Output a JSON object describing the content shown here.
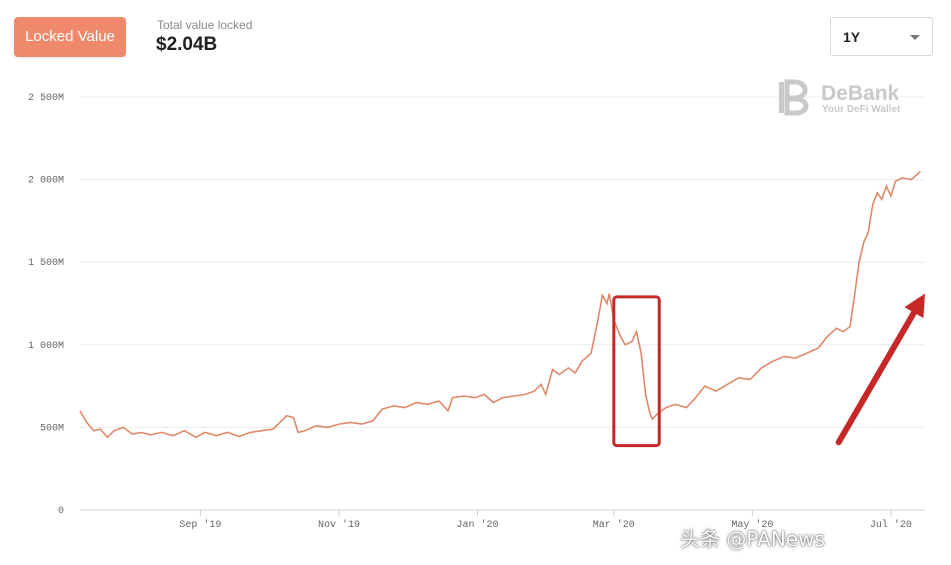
{
  "header": {
    "tab_label": "Locked Value",
    "tvl_label": "Total value locked",
    "tvl_value": "$2.04B",
    "range_selected": "1Y"
  },
  "logo": {
    "name": "DeBank",
    "tagline": "Your DeFi Wallet"
  },
  "watermark": "头条 @PANews",
  "colors": {
    "accent": "#ee8a6b",
    "line": "#e0896a",
    "annotation": "#c62828"
  },
  "chart_data": {
    "type": "line",
    "title": "",
    "xlabel": "",
    "ylabel": "",
    "ylim": [
      0,
      2500
    ],
    "yticks": [
      0,
      500,
      1000,
      1500,
      2000,
      2500
    ],
    "ytick_labels": [
      "0",
      "500M",
      "1 000M",
      "1 500M",
      "2 000M",
      "2 500M"
    ],
    "xlim": [
      "2019-07-10",
      "2020-07-16"
    ],
    "xticks": [
      "2019-09-01",
      "2019-11-01",
      "2020-01-01",
      "2020-03-01",
      "2020-05-01",
      "2020-07-01"
    ],
    "xtick_labels": [
      "Sep '19",
      "Nov '19",
      "Jan '20",
      "Mar '20",
      "May '20",
      "Jul '20"
    ],
    "grid": true,
    "series": [
      {
        "values": [
          [
            "2019-07-10",
            600
          ],
          [
            "2019-07-13",
            530
          ],
          [
            "2019-07-16",
            480
          ],
          [
            "2019-07-19",
            490
          ],
          [
            "2019-07-22",
            440
          ],
          [
            "2019-07-25",
            480
          ],
          [
            "2019-07-29",
            500
          ],
          [
            "2019-08-02",
            460
          ],
          [
            "2019-08-06",
            470
          ],
          [
            "2019-08-10",
            455
          ],
          [
            "2019-08-15",
            470
          ],
          [
            "2019-08-20",
            450
          ],
          [
            "2019-08-25",
            480
          ],
          [
            "2019-08-30",
            440
          ],
          [
            "2019-09-03",
            470
          ],
          [
            "2019-09-08",
            450
          ],
          [
            "2019-09-13",
            470
          ],
          [
            "2019-09-18",
            445
          ],
          [
            "2019-09-23",
            470
          ],
          [
            "2019-09-28",
            480
          ],
          [
            "2019-10-03",
            490
          ],
          [
            "2019-10-06",
            530
          ],
          [
            "2019-10-09",
            570
          ],
          [
            "2019-10-12",
            560
          ],
          [
            "2019-10-14",
            470
          ],
          [
            "2019-10-17",
            480
          ],
          [
            "2019-10-22",
            510
          ],
          [
            "2019-10-27",
            500
          ],
          [
            "2019-11-01",
            520
          ],
          [
            "2019-11-06",
            530
          ],
          [
            "2019-11-11",
            520
          ],
          [
            "2019-11-16",
            540
          ],
          [
            "2019-11-20",
            610
          ],
          [
            "2019-11-25",
            630
          ],
          [
            "2019-11-30",
            620
          ],
          [
            "2019-12-05",
            650
          ],
          [
            "2019-12-10",
            640
          ],
          [
            "2019-12-15",
            660
          ],
          [
            "2019-12-19",
            600
          ],
          [
            "2019-12-21",
            680
          ],
          [
            "2019-12-26",
            690
          ],
          [
            "2019-12-31",
            680
          ],
          [
            "2020-01-04",
            700
          ],
          [
            "2020-01-08",
            650
          ],
          [
            "2020-01-12",
            680
          ],
          [
            "2020-01-17",
            690
          ],
          [
            "2020-01-22",
            700
          ],
          [
            "2020-01-26",
            720
          ],
          [
            "2020-01-29",
            760
          ],
          [
            "2020-01-31",
            700
          ],
          [
            "2020-02-03",
            850
          ],
          [
            "2020-02-06",
            820
          ],
          [
            "2020-02-10",
            860
          ],
          [
            "2020-02-13",
            830
          ],
          [
            "2020-02-16",
            900
          ],
          [
            "2020-02-20",
            950
          ],
          [
            "2020-02-23",
            1150
          ],
          [
            "2020-02-25",
            1300
          ],
          [
            "2020-02-27",
            1250
          ],
          [
            "2020-02-28",
            1310
          ],
          [
            "2020-03-01",
            1150
          ],
          [
            "2020-03-04",
            1050
          ],
          [
            "2020-03-06",
            1000
          ],
          [
            "2020-03-09",
            1020
          ],
          [
            "2020-03-11",
            1080
          ],
          [
            "2020-03-13",
            950
          ],
          [
            "2020-03-15",
            700
          ],
          [
            "2020-03-17",
            580
          ],
          [
            "2020-03-18",
            550
          ],
          [
            "2020-03-20",
            580
          ],
          [
            "2020-03-24",
            620
          ],
          [
            "2020-03-28",
            640
          ],
          [
            "2020-04-02",
            620
          ],
          [
            "2020-04-06",
            680
          ],
          [
            "2020-04-10",
            750
          ],
          [
            "2020-04-15",
            720
          ],
          [
            "2020-04-20",
            760
          ],
          [
            "2020-04-25",
            800
          ],
          [
            "2020-04-30",
            790
          ],
          [
            "2020-05-05",
            860
          ],
          [
            "2020-05-10",
            900
          ],
          [
            "2020-05-15",
            930
          ],
          [
            "2020-05-20",
            920
          ],
          [
            "2020-05-25",
            950
          ],
          [
            "2020-05-30",
            980
          ],
          [
            "2020-06-03",
            1050
          ],
          [
            "2020-06-07",
            1100
          ],
          [
            "2020-06-10",
            1080
          ],
          [
            "2020-06-13",
            1110
          ],
          [
            "2020-06-15",
            1300
          ],
          [
            "2020-06-17",
            1500
          ],
          [
            "2020-06-19",
            1620
          ],
          [
            "2020-06-21",
            1680
          ],
          [
            "2020-06-23",
            1850
          ],
          [
            "2020-06-25",
            1920
          ],
          [
            "2020-06-27",
            1880
          ],
          [
            "2020-06-29",
            1960
          ],
          [
            "2020-07-01",
            1900
          ],
          [
            "2020-07-03",
            1990
          ],
          [
            "2020-07-06",
            2010
          ],
          [
            "2020-07-10",
            2000
          ],
          [
            "2020-07-14",
            2050
          ]
        ]
      }
    ],
    "annotations": [
      {
        "type": "box",
        "x_range": [
          "2020-03-01",
          "2020-03-21"
        ],
        "y_range": [
          390,
          1290
        ]
      },
      {
        "type": "arrow",
        "from": [
          "2020-06-08",
          410
        ],
        "to": [
          "2020-07-16",
          1310
        ]
      }
    ]
  }
}
